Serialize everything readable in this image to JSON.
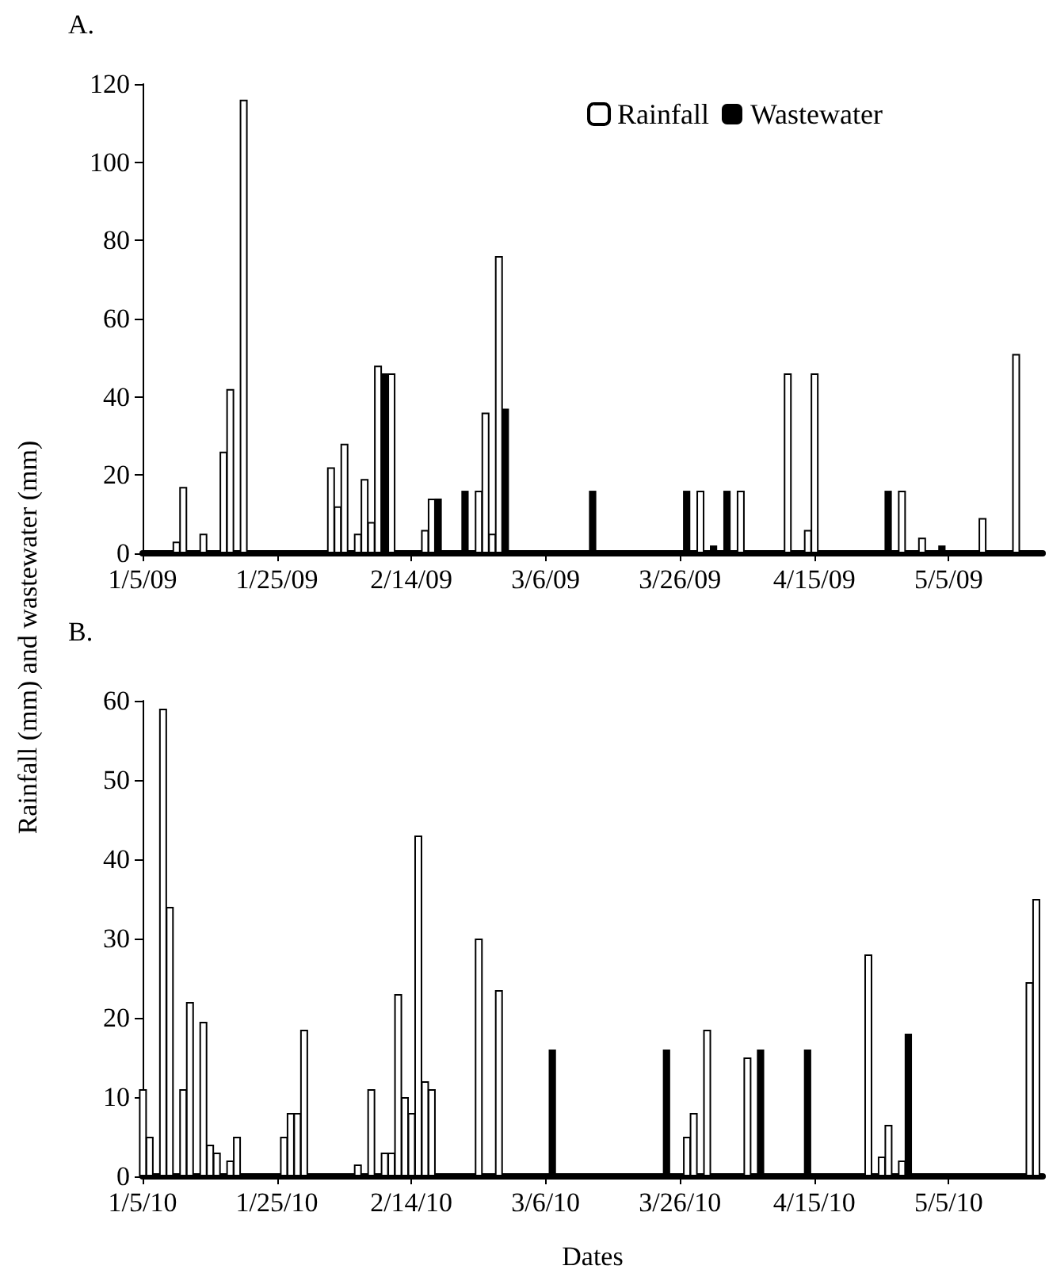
{
  "chart_data": [
    {
      "type": "bar",
      "title": "A.",
      "ylabel": "Rainfall (mm) and wastewater (mm)",
      "legend": "top right",
      "grid": false,
      "xlim": [
        "2009-01-05",
        "2009-05-19"
      ],
      "xticks": [
        {
          "value": "2009-01-05",
          "label": "1/5/09"
        },
        {
          "value": "2009-01-25",
          "label": "1/25/09"
        },
        {
          "value": "2009-02-14",
          "label": "2/14/09"
        },
        {
          "value": "2009-03-06",
          "label": "3/6/09"
        },
        {
          "value": "2009-03-26",
          "label": "3/26/09"
        },
        {
          "value": "2009-04-15",
          "label": "4/15/09"
        },
        {
          "value": "2009-05-05",
          "label": "5/5/09"
        }
      ],
      "ylim": [
        0,
        120
      ],
      "yticks": [
        0,
        20,
        40,
        60,
        80,
        100,
        120
      ],
      "series": [
        {
          "name": "Rainfall",
          "color": "#ffffff",
          "x": [
            "2009-01-10",
            "2009-01-11",
            "2009-01-14",
            "2009-01-17",
            "2009-01-18",
            "2009-01-20",
            "2009-02-02",
            "2009-02-03",
            "2009-02-04",
            "2009-02-06",
            "2009-02-07",
            "2009-02-08",
            "2009-02-09",
            "2009-02-11",
            "2009-02-16",
            "2009-02-17",
            "2009-02-24",
            "2009-02-25",
            "2009-02-26",
            "2009-02-27",
            "2009-03-29",
            "2009-04-04",
            "2009-04-11",
            "2009-04-14",
            "2009-04-15",
            "2009-04-28",
            "2009-05-01",
            "2009-05-10",
            "2009-05-15"
          ],
          "values": [
            3,
            17,
            5,
            26,
            42,
            116,
            22,
            12,
            28,
            5,
            19,
            8,
            48,
            46,
            6,
            14,
            16,
            36,
            5,
            76,
            16,
            16,
            46,
            6,
            46,
            16,
            4,
            9,
            51
          ]
        },
        {
          "name": "Wastewater",
          "color": "#000000",
          "x": [
            "2009-02-10",
            "2009-02-18",
            "2009-02-22",
            "2009-02-28",
            "2009-03-13",
            "2009-03-27",
            "2009-03-31",
            "2009-04-02",
            "2009-04-26",
            "2009-05-04"
          ],
          "values": [
            46,
            14,
            16,
            37,
            16,
            16,
            2,
            16,
            16,
            2
          ]
        }
      ]
    },
    {
      "type": "bar",
      "title": "B.",
      "xlabel": "Dates",
      "legend": false,
      "grid": false,
      "xlim": [
        "2010-01-05",
        "2010-05-19"
      ],
      "xticks": [
        {
          "value": "2010-01-05",
          "label": "1/5/10"
        },
        {
          "value": "2010-01-25",
          "label": "1/25/10"
        },
        {
          "value": "2010-02-14",
          "label": "2/14/10"
        },
        {
          "value": "2010-03-06",
          "label": "3/6/10"
        },
        {
          "value": "2010-03-26",
          "label": "3/26/10"
        },
        {
          "value": "2010-04-15",
          "label": "4/15/10"
        },
        {
          "value": "2010-05-05",
          "label": "5/5/10"
        }
      ],
      "ylim": [
        0,
        60
      ],
      "yticks": [
        0,
        10,
        20,
        30,
        40,
        50,
        60
      ],
      "series": [
        {
          "color": "#ffffff",
          "x": [
            "2010-01-05",
            "2010-01-06",
            "2010-01-08",
            "2010-01-09",
            "2010-01-11",
            "2010-01-12",
            "2010-01-14",
            "2010-01-15",
            "2010-01-16",
            "2010-01-18",
            "2010-01-19",
            "2010-01-26",
            "2010-01-27",
            "2010-01-28",
            "2010-01-29",
            "2010-02-06",
            "2010-02-08",
            "2010-02-10",
            "2010-02-11",
            "2010-02-12",
            "2010-02-13",
            "2010-02-14",
            "2010-02-15",
            "2010-02-16",
            "2010-02-17",
            "2010-02-24",
            "2010-02-27",
            "2010-03-27",
            "2010-03-28",
            "2010-03-30",
            "2010-04-05",
            "2010-04-23",
            "2010-04-25",
            "2010-04-26",
            "2010-04-28",
            "2010-05-17",
            "2010-05-18"
          ],
          "values": [
            11,
            5,
            59,
            34,
            11,
            22,
            19.5,
            4,
            3,
            2,
            5,
            5,
            8,
            8,
            18.5,
            1.5,
            11,
            3,
            3,
            23,
            10,
            8,
            43,
            12,
            11,
            30,
            23.5,
            5,
            8,
            18.5,
            15,
            28,
            2.5,
            6.5,
            2,
            24.5,
            35
          ]
        },
        {
          "color": "#000000",
          "x": [
            "2010-03-07",
            "2010-03-24",
            "2010-04-07",
            "2010-04-14",
            "2010-04-29"
          ],
          "values": [
            16,
            16,
            16,
            16,
            18
          ]
        }
      ]
    }
  ]
}
